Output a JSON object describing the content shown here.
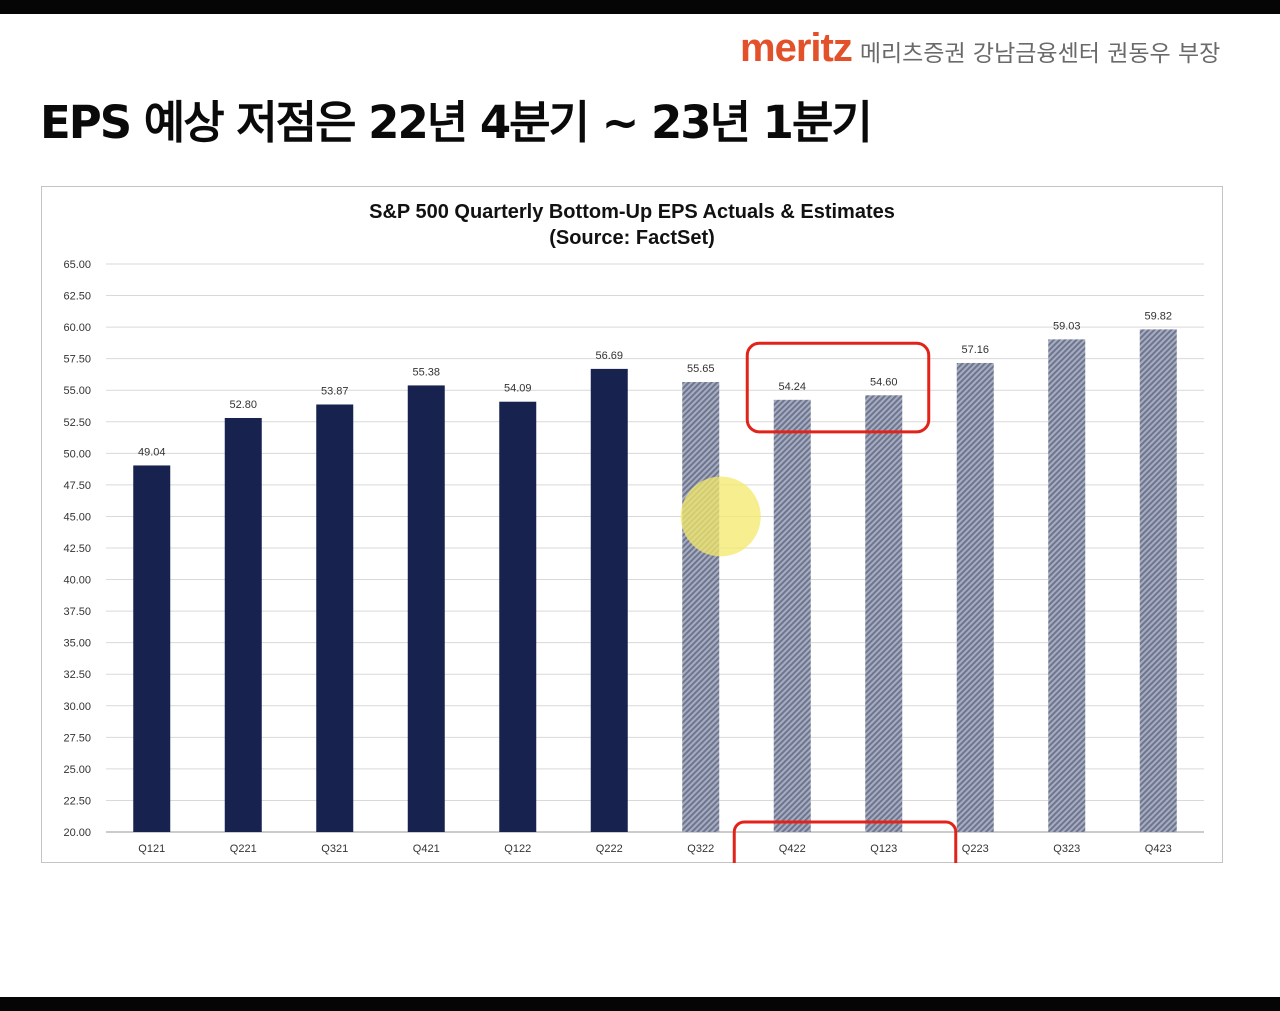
{
  "brand": {
    "logo": "meritz",
    "subtitle": "메리츠증권 강남금융센터 권동우 부장"
  },
  "slide": {
    "title": "EPS 예상 저점은 22년 4분기 ~ 23년 1분기"
  },
  "colors": {
    "actual": "#17224f",
    "estimate": "#8c93aa",
    "highlight": "#e2231a",
    "pointer": "#f4ea6a"
  },
  "chart_data": {
    "type": "bar",
    "title": "S&P 500 Quarterly Bottom-Up EPS Actuals & Estimates",
    "subtitle": "(Source: FactSet)",
    "xlabel": "",
    "ylabel": "",
    "ylim": [
      20,
      65
    ],
    "yticks": [
      "20.00",
      "22.50",
      "25.00",
      "27.50",
      "30.00",
      "32.50",
      "35.00",
      "37.50",
      "40.00",
      "42.50",
      "45.00",
      "47.50",
      "50.00",
      "52.50",
      "55.00",
      "57.50",
      "60.00",
      "62.50",
      "65.00"
    ],
    "ytick_values": [
      20,
      22.5,
      25,
      27.5,
      30,
      32.5,
      35,
      37.5,
      40,
      42.5,
      45,
      47.5,
      50,
      52.5,
      55,
      57.5,
      60,
      62.5,
      65
    ],
    "grid": true,
    "categories": [
      "Q121",
      "Q221",
      "Q321",
      "Q421",
      "Q122",
      "Q222",
      "Q322",
      "Q422",
      "Q123",
      "Q223",
      "Q323",
      "Q423"
    ],
    "values": [
      49.04,
      52.8,
      53.87,
      55.38,
      54.09,
      56.69,
      55.65,
      54.24,
      54.6,
      57.16,
      59.03,
      59.82
    ],
    "value_labels": [
      "49.04",
      "52.80",
      "53.87",
      "55.38",
      "54.09",
      "56.69",
      "55.65",
      "54.24",
      "54.60",
      "57.16",
      "59.03",
      "59.82"
    ],
    "kind": [
      "actual",
      "actual",
      "actual",
      "actual",
      "actual",
      "actual",
      "estimate",
      "estimate",
      "estimate",
      "estimate",
      "estimate",
      "estimate"
    ],
    "highlighted": [
      "Q422",
      "Q123"
    ]
  }
}
